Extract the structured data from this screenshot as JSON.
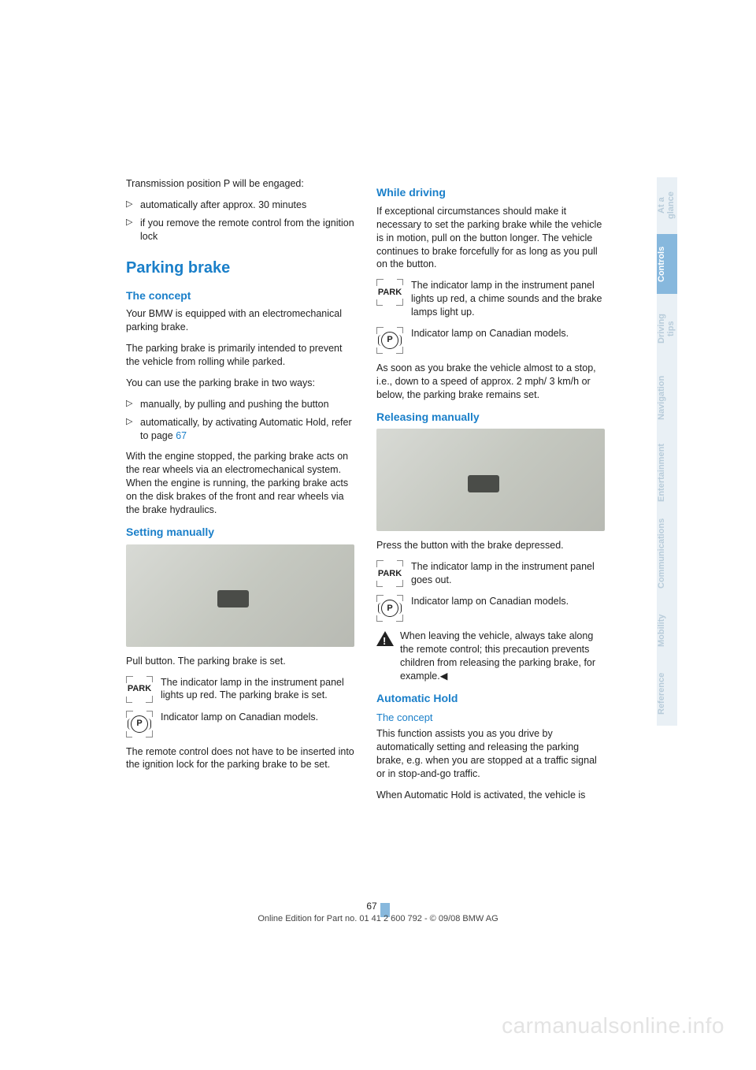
{
  "colors": {
    "accent": "#1a7fc9",
    "tab_active_bg": "#87b8dd",
    "tab_inactive_bg": "#e9f0f5",
    "tab_inactive_fg": "#b8ccda",
    "text": "#222222",
    "watermark": "#e3e3e3"
  },
  "left": {
    "intro": "Transmission position P will be engaged:",
    "bullets": [
      "automatically after approx. 30 minutes",
      "if you remove the remote control from the ignition lock"
    ],
    "h1": "Parking brake",
    "concept_h": "The concept",
    "concept_p1": "Your BMW is equipped with an electromechanical parking brake.",
    "concept_p2": "The parking brake is primarily intended to prevent the vehicle from rolling while parked.",
    "concept_p3": "You can use the parking brake in two ways:",
    "concept_bullets": [
      "manually, by pulling and pushing the button",
      "automatically, by activating Automatic Hold, refer to page "
    ],
    "page_ref": "67",
    "concept_p4": "With the engine stopped, the parking brake acts on the rear wheels via an electromechanical system. When the engine is running, the parking brake acts on the disk brakes of the front and rear wheels via the brake hydraulics.",
    "setting_h": "Setting manually",
    "setting_p1": "Pull button. The parking brake is set.",
    "ind1": "The indicator lamp in the instrument panel lights up red. The parking brake is set.",
    "ind2": "Indicator lamp on Canadian models.",
    "setting_p2": "The remote control does not have to be inserted into the ignition lock for the parking brake to be set."
  },
  "right": {
    "while_h": "While driving",
    "while_p1": "If exceptional circumstances should make it necessary to set the parking brake while the vehicle is in motion, pull on the button longer. The vehicle continues to brake forcefully for as long as you pull on the button.",
    "ind1": "The indicator lamp in the instrument panel lights up red, a chime sounds and the brake lamps light up.",
    "ind2": "Indicator lamp on Canadian models.",
    "while_p2": "As soon as you brake the vehicle almost to a stop, i.e., down to a speed of approx. 2 mph/ 3 km/h or below, the parking brake remains set.",
    "release_h": "Releasing manually",
    "release_p1": "Press the button with the brake depressed.",
    "ind3": "The indicator lamp  in the instrument panel goes out.",
    "ind4": "Indicator lamp on Canadian models.",
    "warn": "When leaving the vehicle, always take along the remote control; this precaution prevents children from releasing the parking brake, for example.◀",
    "auto_h": "Automatic Hold",
    "auto_sub": "The concept",
    "auto_p1": "This function assists you as you drive by automatically setting and releasing the parking brake, e.g. when you are stopped at a traffic signal or in stop-and-go traffic.",
    "auto_p2": "When Automatic Hold is activated, the vehicle is"
  },
  "icons": {
    "park": "PARK",
    "p": "P"
  },
  "tabs": [
    {
      "label": "At a glance",
      "active": false
    },
    {
      "label": "Controls",
      "active": true
    },
    {
      "label": "Driving tips",
      "active": false
    },
    {
      "label": "Navigation",
      "active": false
    },
    {
      "label": "Entertainment",
      "active": false
    },
    {
      "label": "Communications",
      "active": false
    },
    {
      "label": "Mobility",
      "active": false
    },
    {
      "label": "Reference",
      "active": false
    }
  ],
  "footer": {
    "page_num": "67",
    "line": "Online Edition for Part no. 01 41 2 600 792 - © 09/08 BMW AG"
  },
  "watermark": "carmanualsonline.info"
}
